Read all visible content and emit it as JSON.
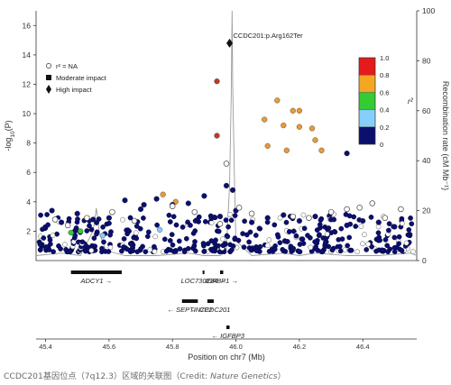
{
  "chart_data": {
    "type": "scatter",
    "xlabel": "Position on chr7 (Mb)",
    "ylabel": "-log10(P)",
    "y2label": "Recombination rate (cM Mb⁻¹)",
    "xlim": [
      45.02,
      46.22
    ],
    "ylim": [
      0,
      17
    ],
    "y2lim": [
      0,
      100
    ],
    "xticks": [
      "45.4",
      "45.6",
      "45.8",
      "46.0",
      "46.2",
      "46.4"
    ],
    "xtick_values": [
      45.05,
      45.25,
      45.45,
      45.65,
      45.85,
      46.05
    ],
    "yticks": [
      "2",
      "4",
      "6",
      "8",
      "10",
      "12",
      "14",
      "16"
    ],
    "y2ticks": [
      "0",
      "20",
      "40",
      "60",
      "80",
      "100"
    ],
    "grid": false,
    "legend": {
      "placement": "top-left",
      "entries": [
        "r² = NA",
        "Moderate impact",
        "High impact"
      ]
    },
    "colorbar": {
      "placement": "top-right",
      "label": "r²",
      "ticks": [
        "0",
        "0.2",
        "0.4",
        "0.6",
        "0.8",
        "1.0"
      ],
      "colors": [
        "#0b0f6e",
        "#87cefa",
        "#33cc33",
        "#f5a623",
        "#e41a1c"
      ]
    },
    "annotation": {
      "text": "CCDC201:p.Arg162Ter",
      "x": 45.63,
      "y": 14.8
    },
    "series": [
      {
        "r2": "0.8-1.0",
        "color": "#c0392b",
        "x": [
          45.59,
          45.59
        ],
        "y": [
          12.2,
          8.5
        ]
      },
      {
        "r2": "0.6-0.8",
        "color": "#e89a3a",
        "x": [
          45.74,
          45.75,
          45.78,
          45.8,
          45.81,
          45.83,
          45.85,
          45.85,
          45.89,
          45.9,
          45.92,
          45.42,
          45.46
        ],
        "y": [
          9.6,
          7.8,
          10.9,
          9.2,
          7.5,
          10.2,
          10.2,
          9.1,
          9.0,
          8.2,
          7.5,
          4.5,
          4.0
        ]
      },
      {
        "r2": "0-0.2",
        "color": "#0b0f6e",
        "x": [
          46.0,
          45.07,
          45.1,
          45.15,
          45.2,
          45.25,
          45.3,
          45.35,
          45.4,
          45.45,
          45.5,
          45.55,
          45.6,
          45.62,
          45.65,
          45.7,
          45.75,
          45.8,
          45.85,
          45.9,
          45.95,
          46.0,
          46.05,
          46.1,
          46.15,
          45.36,
          45.64
        ],
        "y": [
          7.3,
          3.4,
          2.6,
          3.2,
          2.8,
          2.9,
          4.1,
          3.5,
          4.2,
          3.8,
          3.9,
          4.4,
          3.0,
          5.1,
          3.4,
          2.6,
          2.9,
          3.1,
          2.7,
          3.0,
          2.8,
          2.4,
          2.7,
          2.6,
          2.3,
          3.8,
          4.8
        ]
      },
      {
        "r2": "0.2-0.4",
        "color": "#87cefa",
        "x": [
          45.23,
          45.41
        ],
        "y": [
          1.7,
          2.1
        ]
      },
      {
        "r2": "0.4-0.6",
        "color": "#33cc33",
        "x": [
          45.13,
          45.16
        ],
        "y": [
          1.9,
          2.0
        ]
      },
      {
        "r2": "NA",
        "color": "#ffffff",
        "x": [
          45.08,
          45.12,
          45.18,
          45.26,
          45.33,
          45.45,
          45.52,
          45.6,
          45.62,
          45.66,
          45.7,
          45.83,
          45.88,
          45.95,
          46.0,
          46.04,
          46.08,
          46.12,
          46.17
        ],
        "y": [
          2.8,
          2.4,
          2.9,
          3.3,
          2.7,
          3.7,
          3.3,
          2.5,
          6.6,
          3.6,
          3.2,
          3.0,
          2.9,
          3.3,
          3.5,
          3.6,
          3.9,
          2.9,
          3.5
        ]
      }
    ],
    "lead_variant": {
      "x": 45.63,
      "y": 14.8,
      "impact": "High impact"
    },
    "recombination_rate": {
      "x": [
        45.02,
        45.1,
        45.16,
        45.2,
        45.21,
        45.22,
        45.24,
        45.3,
        45.4,
        45.5,
        45.55,
        45.6,
        45.62,
        45.63,
        45.635,
        45.638,
        45.64,
        45.645,
        45.65,
        45.7,
        45.8,
        45.85,
        45.9,
        46.0,
        46.1,
        46.2,
        46.22
      ],
      "y": [
        2,
        3,
        2,
        12,
        21,
        11,
        4,
        2,
        2,
        3,
        2,
        2,
        4,
        30,
        65,
        100,
        70,
        35,
        8,
        2,
        3,
        2,
        3,
        2,
        2,
        3,
        2
      ]
    },
    "genes": [
      {
        "label": "ADCY1 →",
        "start": 45.13,
        "end": 45.29,
        "row": 0
      },
      {
        "label": "LOC730234 →",
        "start": 45.545,
        "end": 45.55,
        "row": 0
      },
      {
        "label": "IGFBP1 →",
        "start": 45.6,
        "end": 45.61,
        "row": 0
      },
      {
        "label": "← SEPTIN7P2",
        "start": 45.48,
        "end": 45.53,
        "row": 1
      },
      {
        "label": "← CCDC201",
        "start": 45.56,
        "end": 45.58,
        "row": 1
      },
      {
        "label": "← IGFBP3",
        "start": 45.62,
        "end": 45.63,
        "row": 2
      }
    ]
  },
  "caption": {
    "main": "CCDC201基因位点（7q12.3）区域的关联图（Credit: ",
    "credit": "Nature Genetics",
    "end": "）"
  }
}
